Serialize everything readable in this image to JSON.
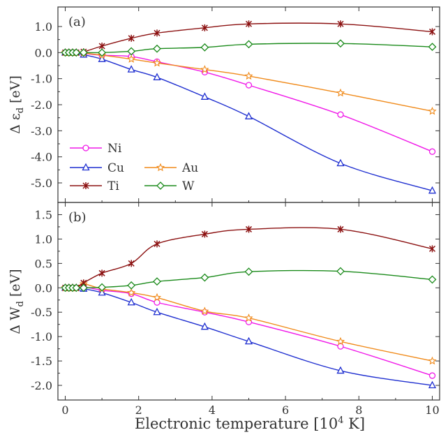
{
  "xaxis": {
    "label": "Electronic temperature [10",
    "label_sup": "4",
    "label_tail": " K]",
    "ticks": [
      0,
      2,
      4,
      6,
      8,
      10
    ],
    "range": [
      -0.2,
      10.2
    ]
  },
  "chart_data": [
    {
      "type": "line",
      "panel_label": "(a)",
      "ylabel": "Δ ε",
      "ylabel_sub": "d",
      "ylabel_unit": " [eV]",
      "ylim": [
        -5.75,
        1.75
      ],
      "yticks": [
        1.0,
        0.0,
        -1.0,
        -2.0,
        -3.0,
        -4.0,
        -5.0
      ],
      "ytick_labels": [
        "1.0",
        "0.0",
        "-1.0",
        "-2.0",
        "-3.0",
        "-4.0",
        "-5.0"
      ],
      "legend_position": "bottom-left",
      "series": [
        {
          "name": "Ni",
          "color": "#f018e8",
          "marker": "circle",
          "x": [
            0,
            0.1,
            0.2,
            0.3,
            0.5,
            1.0,
            1.8,
            2.5,
            3.8,
            5.0,
            7.5,
            10.0
          ],
          "y": [
            0,
            0,
            0,
            0,
            -0.03,
            -0.1,
            -0.15,
            -0.35,
            -0.75,
            -1.25,
            -2.38,
            -3.8
          ]
        },
        {
          "name": "Cu",
          "color": "#1f2fd0",
          "marker": "triangle",
          "x": [
            0,
            0.1,
            0.2,
            0.3,
            0.5,
            1.0,
            1.8,
            2.5,
            3.8,
            5.0,
            7.5,
            10.0
          ],
          "y": [
            0,
            0,
            0,
            0,
            -0.08,
            -0.25,
            -0.65,
            -0.95,
            -1.7,
            -2.45,
            -4.25,
            -5.3
          ]
        },
        {
          "name": "Au",
          "color": "#f08a1a",
          "marker": "star",
          "x": [
            0,
            0.1,
            0.2,
            0.3,
            0.5,
            1.0,
            1.8,
            2.5,
            3.8,
            5.0,
            7.5,
            10.0
          ],
          "y": [
            0,
            0,
            0,
            0,
            -0.02,
            -0.1,
            -0.25,
            -0.4,
            -0.65,
            -0.9,
            -1.55,
            -2.25
          ]
        },
        {
          "name": "Ti",
          "color": "#8b1010",
          "marker": "asterisk",
          "x": [
            0,
            0.1,
            0.2,
            0.3,
            0.5,
            1.0,
            1.8,
            2.5,
            3.8,
            5.0,
            7.5,
            10.0
          ],
          "y": [
            0,
            0,
            0,
            0,
            0.03,
            0.25,
            0.55,
            0.75,
            0.95,
            1.1,
            1.1,
            0.8
          ]
        },
        {
          "name": "W",
          "color": "#1a8a1a",
          "marker": "diamond",
          "x": [
            0,
            0.1,
            0.2,
            0.3,
            0.5,
            1.0,
            1.8,
            2.5,
            3.8,
            5.0,
            7.5,
            10.0
          ],
          "y": [
            0,
            0,
            0,
            0,
            0,
            0,
            0.05,
            0.15,
            0.2,
            0.32,
            0.35,
            0.22
          ]
        }
      ]
    },
    {
      "type": "line",
      "panel_label": "(b)",
      "ylabel": "Δ W",
      "ylabel_sub": "d",
      "ylabel_unit": " [eV]",
      "ylim": [
        -2.3,
        1.75
      ],
      "yticks": [
        1.5,
        1.0,
        0.5,
        0.0,
        -0.5,
        -1.0,
        -1.5,
        -2.0
      ],
      "ytick_labels": [
        "1.5",
        "1.0",
        "0.5",
        "0.0",
        "-0.5",
        "-1.0",
        "-1.5",
        "-2.0"
      ],
      "series": [
        {
          "name": "Ni",
          "color": "#f018e8",
          "marker": "circle",
          "x": [
            0,
            0.1,
            0.2,
            0.3,
            0.5,
            1.0,
            1.8,
            2.5,
            3.8,
            5.0,
            7.5,
            10.0
          ],
          "y": [
            0,
            0,
            0,
            0,
            0.02,
            -0.05,
            -0.12,
            -0.3,
            -0.5,
            -0.7,
            -1.2,
            -1.8
          ]
        },
        {
          "name": "Cu",
          "color": "#1f2fd0",
          "marker": "triangle",
          "x": [
            0,
            0.1,
            0.2,
            0.3,
            0.5,
            1.0,
            1.8,
            2.5,
            3.8,
            5.0,
            7.5,
            10.0
          ],
          "y": [
            0,
            0,
            0,
            0,
            -0.02,
            -0.1,
            -0.3,
            -0.5,
            -0.8,
            -1.1,
            -1.7,
            -2.0
          ]
        },
        {
          "name": "Au",
          "color": "#f08a1a",
          "marker": "star",
          "x": [
            0,
            0.1,
            0.2,
            0.3,
            0.5,
            1.0,
            1.8,
            2.5,
            3.8,
            5.0,
            7.5,
            10.0
          ],
          "y": [
            0,
            0,
            0,
            0,
            0.08,
            -0.02,
            -0.1,
            -0.2,
            -0.48,
            -0.62,
            -1.1,
            -1.5
          ]
        },
        {
          "name": "Ti",
          "color": "#8b1010",
          "marker": "asterisk",
          "x": [
            0,
            0.1,
            0.2,
            0.3,
            0.5,
            1.0,
            1.8,
            2.5,
            3.8,
            5.0,
            7.5,
            10.0
          ],
          "y": [
            0,
            0,
            0,
            0,
            0.1,
            0.3,
            0.5,
            0.9,
            1.1,
            1.2,
            1.2,
            0.8
          ]
        },
        {
          "name": "W",
          "color": "#1a8a1a",
          "marker": "diamond",
          "x": [
            0,
            0.1,
            0.2,
            0.3,
            0.5,
            1.0,
            1.8,
            2.5,
            3.8,
            5.0,
            7.5,
            10.0
          ],
          "y": [
            0,
            0,
            0,
            0,
            0,
            0.01,
            0.05,
            0.13,
            0.21,
            0.33,
            0.34,
            0.17
          ]
        }
      ]
    }
  ]
}
